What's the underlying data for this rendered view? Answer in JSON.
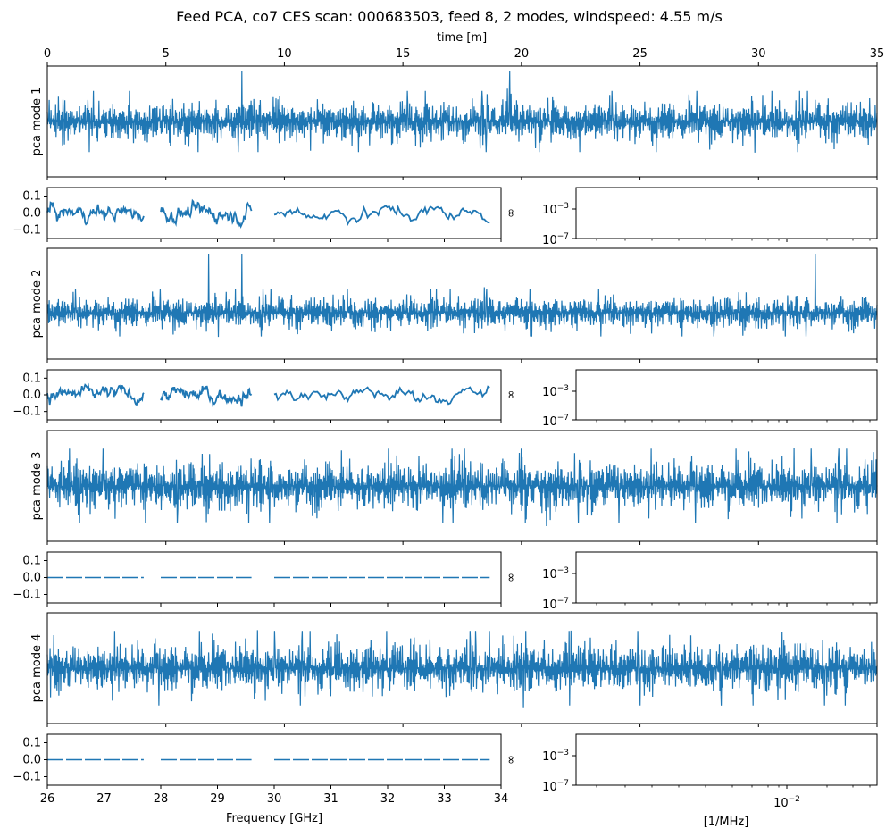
{
  "title": "Feed PCA, co7 CES scan: 000683503, feed 8, 2 modes, windspeed: 4.55 m/s",
  "top_axis": {
    "label": "time [m]",
    "ticks": [
      "0",
      "5",
      "10",
      "15",
      "20",
      "25",
      "30",
      "35"
    ],
    "range": [
      0,
      35
    ]
  },
  "freq_axis": {
    "label": "Frequency [GHz]",
    "ticks": [
      "26",
      "27",
      "28",
      "29",
      "30",
      "31",
      "32",
      "33",
      "34"
    ],
    "range": [
      26,
      34
    ]
  },
  "psd_axis": {
    "xlabel": "[1/MHz]",
    "xtick": "10",
    "xtick_exp": "−2",
    "ytick_top": "10",
    "ytick_top_exp": "−3",
    "ytick_bottom": "10",
    "ytick_bottom_exp": "−7",
    "ylabel": "∞"
  },
  "line_color": "#1f77b4",
  "chart_data": [
    {
      "type": "line",
      "ylabel": "pca mode 1",
      "x_range": [
        0,
        35
      ],
      "description_values": {
        "spike_times": [
          8.2,
          19.5
        ],
        "dip_time": 10.9
      },
      "freq_panel": {
        "type": "line",
        "yticks": [
          "0.1",
          "0.0",
          "−0.1"
        ],
        "ylim": [
          -0.15,
          0.15
        ],
        "segments": [
          [
            26.0,
            27.7
          ],
          [
            28.0,
            29.6
          ],
          [
            30.0,
            33.8
          ]
        ],
        "amplitude": 0.04
      }
    },
    {
      "type": "line",
      "ylabel": "pca mode 2",
      "x_range": [
        0,
        35
      ],
      "description_values": {
        "spike_times": [
          6.8,
          8.2,
          32.4
        ]
      },
      "freq_panel": {
        "type": "line",
        "yticks": [
          "0.1",
          "0.0",
          "−0.1"
        ],
        "ylim": [
          -0.15,
          0.15
        ],
        "segments": [
          [
            26.0,
            27.7
          ],
          [
            28.0,
            29.6
          ],
          [
            30.0,
            33.8
          ]
        ],
        "amplitude": 0.04
      }
    },
    {
      "type": "line",
      "ylabel": "pca mode 3",
      "x_range": [
        0,
        35
      ],
      "freq_panel": {
        "type": "line",
        "yticks": [
          "0.1",
          "0.0",
          "−0.1"
        ],
        "ylim": [
          -0.15,
          0.15
        ],
        "segments": [
          [
            26.0,
            27.7
          ],
          [
            28.0,
            29.6
          ],
          [
            30.0,
            33.8
          ]
        ],
        "amplitude": 0.0
      }
    },
    {
      "type": "line",
      "ylabel": "pca mode 4",
      "x_range": [
        0,
        35
      ],
      "freq_panel": {
        "type": "line",
        "yticks": [
          "0.1",
          "0.0",
          "−0.1"
        ],
        "ylim": [
          -0.15,
          0.15
        ],
        "segments": [
          [
            26.0,
            27.7
          ],
          [
            28.0,
            29.6
          ],
          [
            30.0,
            33.8
          ]
        ],
        "amplitude": 0.0
      }
    }
  ]
}
